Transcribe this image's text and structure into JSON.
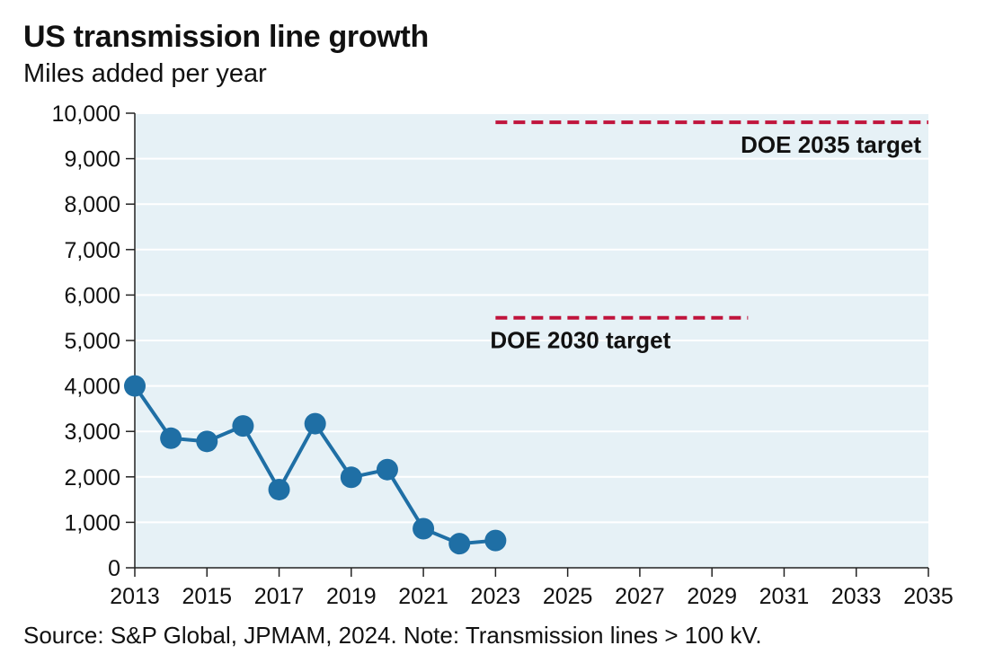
{
  "chart_data": {
    "type": "line",
    "title": "US transmission line growth",
    "subtitle": "Miles added per year",
    "source": "Source: S&P Global, JPMAM, 2024. Note: Transmission lines > 100 kV.",
    "xlim": [
      2013,
      2035
    ],
    "ylim": [
      0,
      10000
    ],
    "x_ticks": [
      "2013",
      "2015",
      "2017",
      "2019",
      "2021",
      "2023",
      "2025",
      "2027",
      "2029",
      "2031",
      "2033",
      "2035"
    ],
    "y_ticks": [
      "0",
      "1,000",
      "2,000",
      "3,000",
      "4,000",
      "5,000",
      "6,000",
      "7,000",
      "8,000",
      "9,000",
      "10,000"
    ],
    "grid": "horizontal",
    "colors": {
      "series": "#1f6fa5",
      "target": "#c0143c",
      "plot_bg": "#e6f1f6"
    },
    "series": [
      {
        "x": [
          2013,
          2014,
          2015,
          2016,
          2017,
          2018,
          2019,
          2020,
          2021,
          2022,
          2023
        ],
        "values": [
          4000,
          2850,
          2780,
          3120,
          1720,
          3170,
          1990,
          2160,
          860,
          530,
          600
        ]
      }
    ],
    "annotations": [
      {
        "label": "DOE 2030 target",
        "value": 5500,
        "x_start": 2023,
        "x_end": 2030
      },
      {
        "label": "DOE 2035 target",
        "value": 9800,
        "x_start": 2023,
        "x_end": 2035
      }
    ]
  }
}
